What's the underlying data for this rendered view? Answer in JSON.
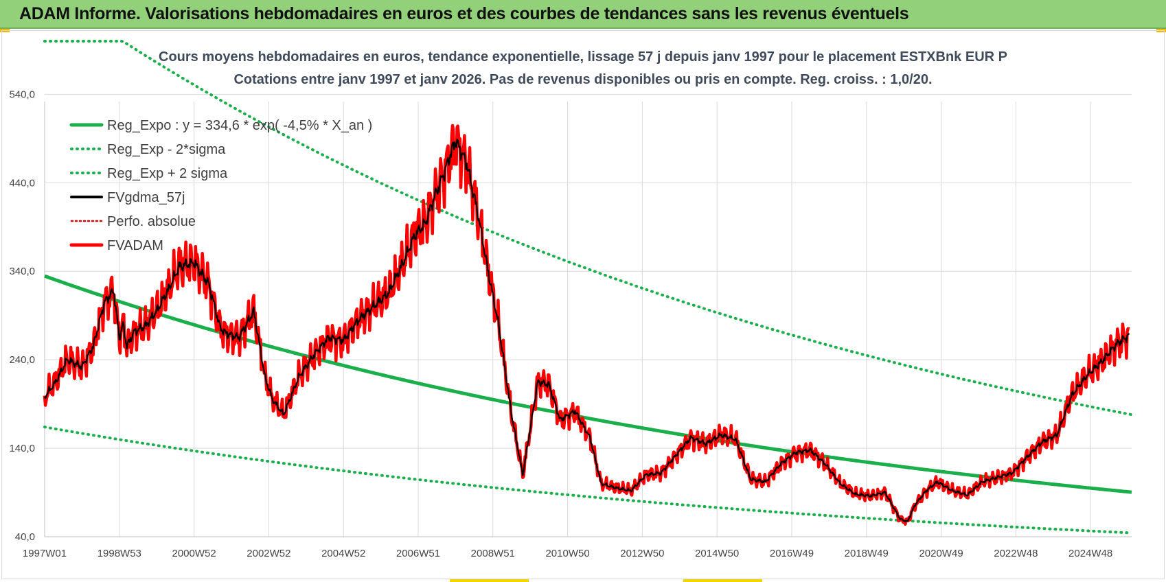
{
  "header": {
    "title": "ADAM Informe. Valorisations hebdomadaires en euros et des courbes de tendances sans les revenus éventuels"
  },
  "colors": {
    "banner": "#92d07a",
    "reg_expo": "#1aaf4b",
    "sigma": "#1aaf4b",
    "fvgdma": "#000000",
    "perfo": "#e00000",
    "fvadam": "#ff0000",
    "grid": "#d9d9d9"
  },
  "chart_data": {
    "type": "line",
    "title": "Cours moyens hebdomadaires en euros, tendance exponentielle, lissage 57 j depuis janv 1997  pour le placement ESTXBnk EUR P",
    "subtitle": "Cotations entre janv 1997 et janv 2026. Pas de revenus disponibles ou pris  en compte. Reg. croiss. : 1,0/20.",
    "xlabel": "",
    "ylabel": "",
    "ylim": [
      40,
      600
    ],
    "xlim": [
      1997.0,
      2026.1
    ],
    "yticks": [
      40,
      140,
      240,
      340,
      440,
      540
    ],
    "ytick_labels": [
      "40,0",
      "140,0",
      "240,0",
      "340,0",
      "440,0",
      "540,0"
    ],
    "xtick_labels": [
      "1997W01",
      "1998W53",
      "2000W52",
      "2002W52",
      "2004W52",
      "2006W51",
      "2008W51",
      "2010W50",
      "2012W50",
      "2014W50",
      "2016W49",
      "2018W49",
      "2020W49",
      "2022W48",
      "2024W48"
    ],
    "xtick_positions": [
      1997.0,
      1999.0,
      2001.0,
      2003.0,
      2005.0,
      2007.0,
      2009.0,
      2011.0,
      2013.0,
      2015.0,
      2017.0,
      2019.0,
      2021.0,
      2023.0,
      2025.0
    ],
    "grid": true,
    "legend_position": "top-left",
    "reg_expo": {
      "a": 334.6,
      "rate": -0.045
    },
    "sigma_low_factor": 0.49,
    "sigma_high_factor": 1.97,
    "sigma_high_cap": 600,
    "series": [
      {
        "name": "Reg_Expo : y = 334,6 * exp( -4,5% *  X_an )",
        "style": "solid-green"
      },
      {
        "name": "Reg_Exp - 2*sigma",
        "style": "dotted-green"
      },
      {
        "name": "Reg_Exp + 2 sigma",
        "style": "dotted-green"
      },
      {
        "name": "FVgdma_57j",
        "style": "solid-black"
      },
      {
        "name": "Perfo. absolue",
        "style": "dotted-red"
      },
      {
        "name": "FVADAM",
        "style": "solid-red",
        "x": [
          1997.0,
          1997.3,
          1997.6,
          1998.0,
          1998.3,
          1998.6,
          1998.85,
          1999.0,
          1999.1,
          1999.2,
          1999.4,
          1999.7,
          2000.0,
          2000.3,
          2000.6,
          2001.0,
          2001.4,
          2001.7,
          2001.85,
          2002.2,
          2002.6,
          2002.9,
          2003.1,
          2003.4,
          2003.8,
          2004.2,
          2004.6,
          2005.0,
          2005.4,
          2005.8,
          2006.2,
          2006.6,
          2006.9,
          2007.2,
          2007.4,
          2007.7,
          2008.0,
          2008.3,
          2008.6,
          2008.85,
          2009.15,
          2009.5,
          2009.8,
          2010.2,
          2010.5,
          2010.8,
          2011.2,
          2011.6,
          2011.9,
          2012.3,
          2012.7,
          2013.1,
          2013.5,
          2013.9,
          2014.3,
          2014.7,
          2015.1,
          2015.5,
          2015.9,
          2016.3,
          2016.7,
          2017.1,
          2017.5,
          2017.9,
          2018.3,
          2018.7,
          2019.1,
          2019.5,
          2019.9,
          2020.1,
          2020.3,
          2020.6,
          2020.9,
          2021.3,
          2021.7,
          2022.1,
          2022.5,
          2022.9,
          2023.3,
          2023.7,
          2024.1,
          2024.5,
          2024.9,
          2025.3,
          2025.7,
          2026.05
        ],
        "values": [
          198,
          215,
          240,
          232,
          255,
          305,
          318,
          265,
          280,
          255,
          272,
          278,
          295,
          318,
          345,
          350,
          325,
          276,
          270,
          265,
          295,
          220,
          195,
          178,
          220,
          245,
          265,
          262,
          285,
          300,
          315,
          350,
          380,
          395,
          420,
          452,
          488,
          462,
          405,
          345,
          280,
          178,
          110,
          215,
          212,
          172,
          182,
          152,
          100,
          95,
          92,
          110,
          112,
          132,
          152,
          145,
          155,
          150,
          105,
          102,
          122,
          135,
          138,
          122,
          100,
          88,
          86,
          90,
          60,
          57,
          76,
          92,
          102,
          92,
          87,
          102,
          107,
          112,
          130,
          147,
          155,
          200,
          222,
          238,
          258,
          268
        ]
      }
    ]
  }
}
